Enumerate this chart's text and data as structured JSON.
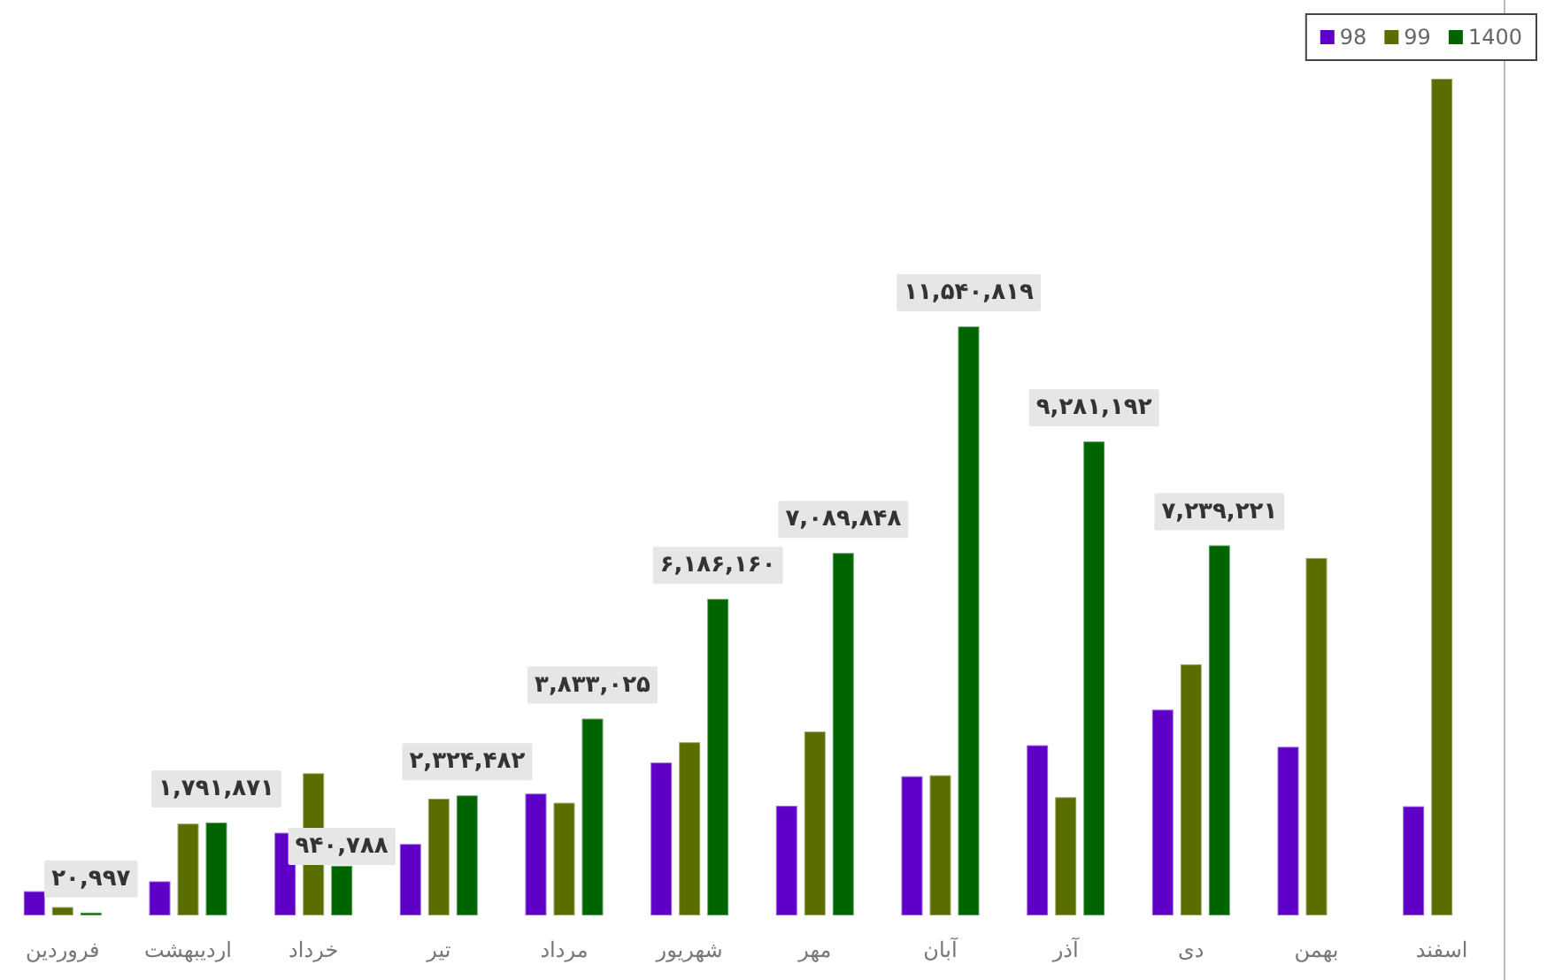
{
  "chart_data": {
    "type": "bar",
    "categories": [
      "فروردین",
      "اردیبهشت",
      "خرداد",
      "تیر",
      "مرداد",
      "شهریور",
      "مهر",
      "آبان",
      "آذر",
      "دی",
      "بهمن",
      "اسفند"
    ],
    "series": [
      {
        "name": "98",
        "color": "#5e00c8",
        "values": [
          441000,
          636000,
          1590000,
          1370000,
          2360000,
          2970000,
          2120000,
          2700000,
          3310000,
          4010000,
          3280000,
          2110000
        ]
      },
      {
        "name": "99",
        "color": "#5a6e00",
        "values": [
          130000,
          1770000,
          2760000,
          2260000,
          2180000,
          3370000,
          3580000,
          2720000,
          2290000,
          4900000,
          6990000,
          16410000
        ]
      },
      {
        "name": "1400",
        "color": "#006400",
        "values": [
          20997,
          1791871,
          940788,
          2324482,
          3833025,
          6186160,
          7089848,
          11540819,
          9281192,
          7239221,
          null,
          null
        ],
        "value_labels": [
          "۲۰,۹۹۷",
          "۱,۷۹۱,۸۷۱",
          "۹۴۰,۷۸۸",
          "۲,۳۲۴,۴۸۲",
          "۳,۸۳۳,۰۲۵",
          "۶,۱۸۶,۱۶۰",
          "۷,۰۸۹,۸۴۸",
          "۱۱,۵۴۰,۸۱۹",
          "۹,۲۸۱,۱۹۲",
          "۷,۲۳۹,۲۲۱",
          null,
          null
        ]
      }
    ],
    "legend": "top right",
    "grid": false
  }
}
